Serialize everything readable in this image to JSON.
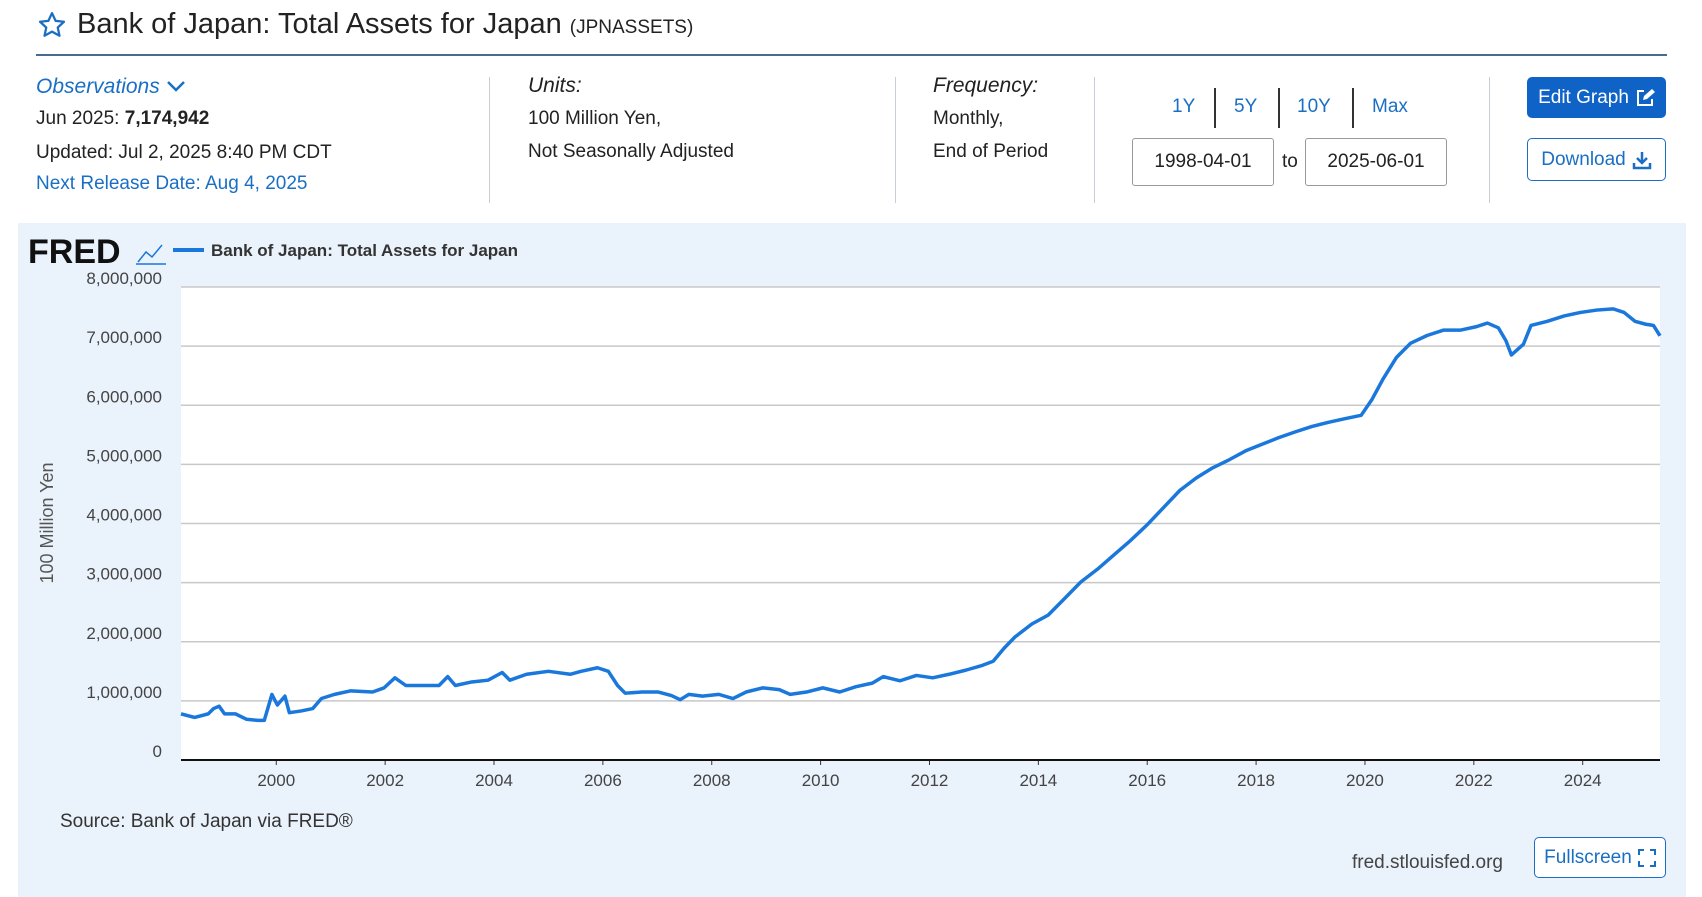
{
  "header": {
    "title": "Bank of Japan: Total Assets for Japan",
    "code": "(JPNASSETS)"
  },
  "observations": {
    "label": "Observations",
    "latest_date": "Jun 2025:",
    "latest_value": "7,174,942",
    "updated": "Updated: Jul 2, 2025 8:40 PM CDT",
    "next_release": "Next Release Date: Aug 4, 2025"
  },
  "units": {
    "label": "Units:",
    "lines": [
      "100 Million Yen,",
      "Not Seasonally Adjusted"
    ]
  },
  "frequency": {
    "label": "Frequency:",
    "lines": [
      "Monthly,",
      "End of Period"
    ]
  },
  "ranges": [
    "1Y",
    "5Y",
    "10Y",
    "Max"
  ],
  "date_range": {
    "start": "1998-04-01",
    "separator": "to",
    "end": "2025-06-01"
  },
  "buttons": {
    "edit": "Edit Graph",
    "download": "Download",
    "fullscreen": "Fullscreen"
  },
  "chart_data": {
    "type": "line",
    "brand": "FRED",
    "ylabel": "100 Million Yen",
    "source": "Source: Bank of Japan via FRED®",
    "site": "fred.stlouisfed.org",
    "grid": true,
    "xlim": [
      1998.25,
      2025.42
    ],
    "ylim": [
      0,
      8000000
    ],
    "xticks": [
      2000,
      2002,
      2004,
      2006,
      2008,
      2010,
      2012,
      2014,
      2016,
      2018,
      2020,
      2022,
      2024
    ],
    "yticks": [
      0,
      {
        "value": 1000000,
        "label": "1,000,000"
      },
      {
        "value": 2000000,
        "label": "2,000,000"
      },
      {
        "value": 3000000,
        "label": "3,000,000"
      },
      {
        "value": 4000000,
        "label": "4,000,000"
      },
      {
        "value": 5000000,
        "label": "5,000,000"
      },
      {
        "value": 6000000,
        "label": "6,000,000"
      },
      {
        "value": 7000000,
        "label": "7,000,000"
      },
      {
        "value": 8000000,
        "label": "8,000,000"
      }
    ],
    "x": [
      1998.25,
      1998.5,
      1998.75,
      1998.85,
      1998.95,
      1999.05,
      1999.25,
      1999.45,
      1999.66,
      1999.78,
      1999.92,
      2000.02,
      2000.16,
      2000.24,
      2000.46,
      2000.67,
      2000.83,
      2001.07,
      2001.37,
      2001.77,
      2001.98,
      2002.18,
      2002.38,
      2002.68,
      2002.99,
      2003.15,
      2003.29,
      2003.59,
      2003.89,
      2004.15,
      2004.29,
      2004.6,
      2005.0,
      2005.4,
      2005.6,
      2005.9,
      2006.1,
      2006.27,
      2006.41,
      2006.72,
      2007.02,
      2007.26,
      2007.42,
      2007.58,
      2007.83,
      2008.13,
      2008.39,
      2008.63,
      2008.94,
      2009.24,
      2009.44,
      2009.74,
      2010.04,
      2010.35,
      2010.65,
      2010.95,
      2011.15,
      2011.46,
      2011.76,
      2012.06,
      2012.36,
      2012.67,
      2012.97,
      2013.17,
      2013.37,
      2013.57,
      2013.88,
      2014.18,
      2014.48,
      2014.78,
      2015.09,
      2015.39,
      2015.69,
      2015.99,
      2016.3,
      2016.6,
      2016.9,
      2017.2,
      2017.51,
      2017.81,
      2018.11,
      2018.41,
      2018.72,
      2019.02,
      2019.32,
      2019.62,
      2019.93,
      2020.13,
      2020.33,
      2020.58,
      2020.84,
      2021.14,
      2021.44,
      2021.75,
      2022.05,
      2022.25,
      2022.45,
      2022.59,
      2022.69,
      2022.91,
      2023.05,
      2023.35,
      2023.66,
      2023.96,
      2024.26,
      2024.56,
      2024.76,
      2024.96,
      2025.16,
      2025.3,
      2025.42
    ],
    "series": [
      {
        "name": "Bank of Japan: Total Assets for Japan",
        "color": "#1a78dc",
        "values": [
          780000,
          720000,
          780000,
          870000,
          910000,
          780000,
          780000,
          690000,
          670000,
          670000,
          1110000,
          930000,
          1080000,
          800000,
          830000,
          870000,
          1040000,
          1110000,
          1170000,
          1150000,
          1220000,
          1390000,
          1260000,
          1260000,
          1260000,
          1410000,
          1260000,
          1320000,
          1350000,
          1480000,
          1350000,
          1450000,
          1500000,
          1450000,
          1500000,
          1560000,
          1500000,
          1260000,
          1130000,
          1150000,
          1150000,
          1090000,
          1020000,
          1110000,
          1080000,
          1110000,
          1040000,
          1150000,
          1220000,
          1190000,
          1110000,
          1150000,
          1220000,
          1150000,
          1240000,
          1300000,
          1410000,
          1340000,
          1430000,
          1390000,
          1450000,
          1520000,
          1600000,
          1670000,
          1890000,
          2080000,
          2300000,
          2450000,
          2730000,
          3010000,
          3230000,
          3470000,
          3710000,
          3970000,
          4270000,
          4560000,
          4770000,
          4940000,
          5080000,
          5230000,
          5340000,
          5450000,
          5550000,
          5640000,
          5710000,
          5770000,
          5830000,
          6100000,
          6440000,
          6810000,
          7050000,
          7180000,
          7270000,
          7270000,
          7330000,
          7390000,
          7310000,
          7090000,
          6850000,
          7030000,
          7350000,
          7420000,
          7510000,
          7570000,
          7610000,
          7630000,
          7570000,
          7420000,
          7370000,
          7350000,
          7174942
        ]
      }
    ]
  }
}
